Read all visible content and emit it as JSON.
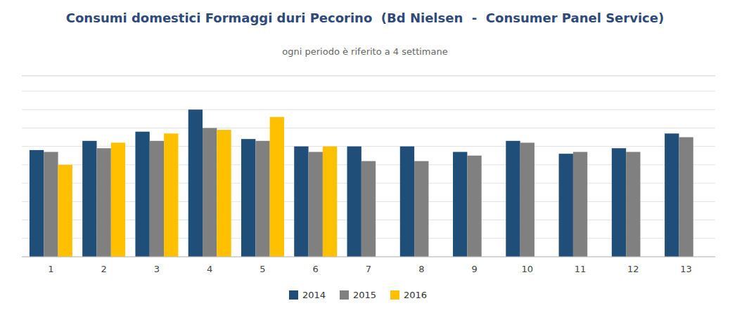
{
  "chart_data": {
    "type": "bar",
    "title": "Consumi domestici Formaggi duri Pecorino  (Bd Nielsen  -  Consumer Panel Service)",
    "subtitle": "ogni periodo è riferito a 4 settimane",
    "categories": [
      "1",
      "2",
      "3",
      "4",
      "5",
      "6",
      "7",
      "8",
      "9",
      "10",
      "11",
      "12",
      "13"
    ],
    "series": [
      {
        "name": "2014",
        "color": "#1F4E79",
        "values": [
          58,
          63,
          68,
          80,
          64,
          60,
          60,
          60,
          57,
          63,
          56,
          59,
          67
        ]
      },
      {
        "name": "2015",
        "color": "#808080",
        "values": [
          57,
          59,
          63,
          70,
          63,
          57,
          52,
          52,
          55,
          62,
          57,
          57,
          65
        ]
      },
      {
        "name": "2016",
        "color": "#FFC000",
        "values": [
          50,
          62,
          67,
          69,
          76,
          60,
          null,
          null,
          null,
          null,
          null,
          null,
          null
        ]
      }
    ],
    "ylim": [
      0,
      90
    ],
    "yticks": [
      0,
      10,
      20,
      30,
      40,
      50,
      60,
      70,
      80,
      90
    ],
    "grid": true,
    "tick_labels": "x",
    "legend": "bottom"
  }
}
